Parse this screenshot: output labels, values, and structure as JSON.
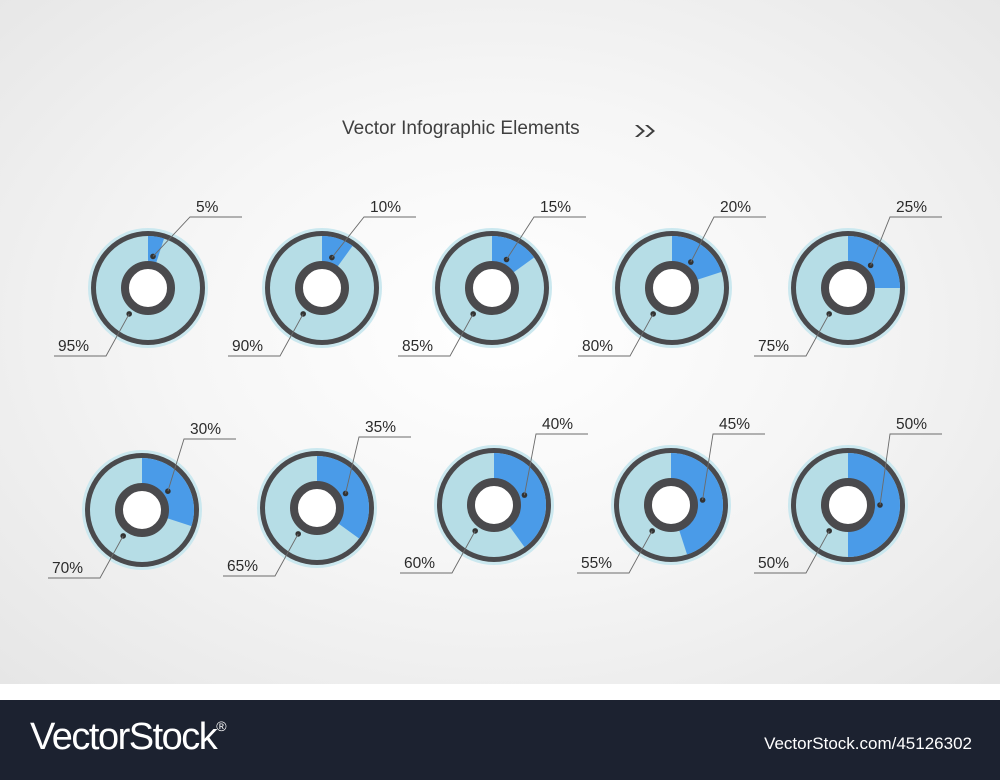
{
  "title": "Vector Infographic Elements",
  "title_icon": "double-chevron-right-icon",
  "colors": {
    "highlight": "#4a9be8",
    "remainder": "#b6dde6",
    "outer_ring": "#cbe8ef",
    "outline": "#4a4a4d",
    "hole": "#ffffff",
    "footer_bg": "#1c2230"
  },
  "chart_data": {
    "type": "pie",
    "variant": "ring-pie",
    "charts": [
      {
        "highlight": 5,
        "remainder": 95,
        "highlight_label": "5%",
        "remainder_label": "95%"
      },
      {
        "highlight": 10,
        "remainder": 90,
        "highlight_label": "10%",
        "remainder_label": "90%"
      },
      {
        "highlight": 15,
        "remainder": 85,
        "highlight_label": "15%",
        "remainder_label": "85%"
      },
      {
        "highlight": 20,
        "remainder": 80,
        "highlight_label": "20%",
        "remainder_label": "80%"
      },
      {
        "highlight": 25,
        "remainder": 75,
        "highlight_label": "25%",
        "remainder_label": "75%"
      },
      {
        "highlight": 30,
        "remainder": 70,
        "highlight_label": "30%",
        "remainder_label": "70%"
      },
      {
        "highlight": 35,
        "remainder": 65,
        "highlight_label": "35%",
        "remainder_label": "65%"
      },
      {
        "highlight": 40,
        "remainder": 60,
        "highlight_label": "40%",
        "remainder_label": "60%"
      },
      {
        "highlight": 45,
        "remainder": 55,
        "highlight_label": "45%",
        "remainder_label": "55%"
      },
      {
        "highlight": 50,
        "remainder": 50,
        "highlight_label": "50%",
        "remainder_label": "50%"
      }
    ]
  },
  "footer": {
    "brand": "VectorStock",
    "brand_mark": "®",
    "image_id": "VectorStock.com/45126302"
  }
}
